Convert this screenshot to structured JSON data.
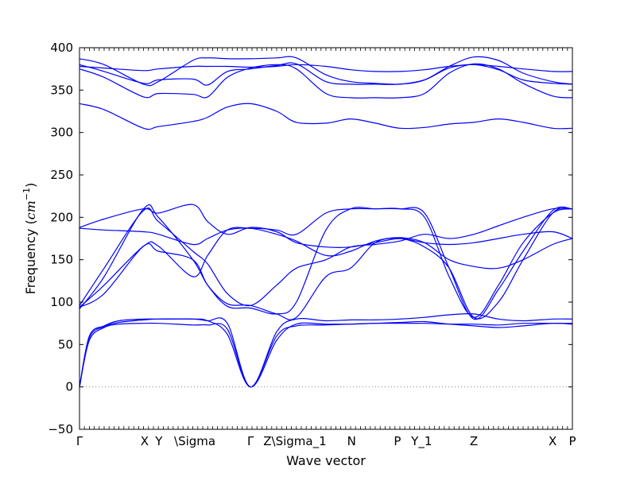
{
  "chart_data": {
    "type": "line",
    "title": "",
    "xlabel": "Wave vector",
    "ylabel": "Frequency ($cm^{-1}$)",
    "ylabel_parts": {
      "text": "Frequency (",
      "math": "cm",
      "sup": "−1",
      "close": ")"
    },
    "ylim": [
      -50,
      400
    ],
    "yticks": [
      -50,
      0,
      50,
      100,
      150,
      200,
      250,
      300,
      350,
      400
    ],
    "xlim": [
      0,
      1
    ],
    "grid": false,
    "legend": "none",
    "line_color": "#0000ff",
    "zero_line": {
      "y": 0,
      "style": "dotted",
      "color": "#888888"
    },
    "xticks": [
      {
        "label": "Γ",
        "x": 0.0
      },
      {
        "label": "X",
        "x": 0.132
      },
      {
        "label": "Y",
        "x": 0.161
      },
      {
        "label": "\\Sigma",
        "x": 0.234
      },
      {
        "label": "Γ",
        "x": 0.347
      },
      {
        "label": "Z\\Sigma_1",
        "x": 0.437
      },
      {
        "label": "N",
        "x": 0.552
      },
      {
        "label": "P",
        "x": 0.645
      },
      {
        "label": "Y_1",
        "x": 0.694
      },
      {
        "label": "Z",
        "x": 0.8
      },
      {
        "label": "X",
        "x": 0.96
      },
      {
        "label": "P",
        "x": 1.0
      }
    ],
    "minor_xtick_step": 0.01,
    "series": [
      {
        "x": [
          0,
          0.05,
          0.13,
          0.16,
          0.23,
          0.26,
          0.3,
          0.347,
          0.4,
          0.44,
          0.5,
          0.55,
          0.6,
          0.65,
          0.7,
          0.75,
          0.8,
          0.85,
          0.9,
          0.96,
          1.0
        ],
        "y": [
          387,
          380,
          357,
          360,
          385,
          388,
          387,
          387,
          388,
          388,
          368,
          360,
          358,
          357,
          362,
          378,
          389,
          385,
          370,
          360,
          357
        ]
      },
      {
        "x": [
          0,
          0.05,
          0.13,
          0.16,
          0.23,
          0.26,
          0.3,
          0.347,
          0.4,
          0.44,
          0.5,
          0.55,
          0.6,
          0.65,
          0.7,
          0.75,
          0.8,
          0.85,
          0.9,
          0.96,
          1.0
        ],
        "y": [
          375,
          365,
          342,
          346,
          345,
          342,
          365,
          376,
          380,
          375,
          346,
          341,
          341,
          341,
          346,
          370,
          381,
          375,
          358,
          343,
          341
        ]
      },
      {
        "x": [
          0,
          0.05,
          0.13,
          0.16,
          0.23,
          0.26,
          0.3,
          0.347,
          0.4,
          0.44,
          0.5,
          0.55,
          0.6,
          0.65,
          0.7,
          0.75,
          0.8,
          0.85,
          0.9,
          0.96,
          1.0
        ],
        "y": [
          378,
          376,
          373,
          375,
          378,
          378,
          378,
          377,
          378,
          380,
          378,
          374,
          372,
          372,
          374,
          378,
          380,
          378,
          375,
          372,
          372
        ]
      },
      {
        "x": [
          0,
          0.05,
          0.13,
          0.16,
          0.23,
          0.26,
          0.3,
          0.347,
          0.4,
          0.44,
          0.5,
          0.55,
          0.6,
          0.65,
          0.7,
          0.75,
          0.8,
          0.85,
          0.9,
          0.96,
          1.0
        ],
        "y": [
          380,
          372,
          358,
          362,
          363,
          356,
          372,
          375,
          379,
          381,
          360,
          357,
          357,
          357,
          362,
          376,
          380,
          374,
          362,
          358,
          357
        ]
      },
      {
        "x": [
          0,
          0.05,
          0.13,
          0.16,
          0.23,
          0.26,
          0.3,
          0.347,
          0.4,
          0.44,
          0.5,
          0.55,
          0.6,
          0.65,
          0.7,
          0.75,
          0.8,
          0.85,
          0.9,
          0.96,
          1.0
        ],
        "y": [
          334,
          327,
          305,
          307,
          313,
          318,
          330,
          334,
          325,
          312,
          311,
          316,
          311,
          305,
          306,
          310,
          312,
          316,
          312,
          305,
          305
        ]
      },
      {
        "x": [
          0,
          0.05,
          0.13,
          0.16,
          0.23,
          0.26,
          0.3,
          0.347,
          0.4,
          0.44,
          0.5,
          0.55,
          0.6,
          0.65,
          0.7,
          0.75,
          0.8,
          0.85,
          0.9,
          0.96,
          1.0
        ],
        "y": [
          188,
          198,
          210,
          205,
          215,
          195,
          180,
          188,
          183,
          170,
          165,
          165,
          170,
          175,
          170,
          168,
          170,
          175,
          180,
          183,
          175
        ]
      },
      {
        "x": [
          0,
          0.05,
          0.13,
          0.16,
          0.23,
          0.26,
          0.3,
          0.347,
          0.4,
          0.44,
          0.5,
          0.55,
          0.6,
          0.65,
          0.7,
          0.75,
          0.8,
          0.85,
          0.9,
          0.96,
          1.0
        ],
        "y": [
          187,
          185,
          183,
          180,
          168,
          175,
          185,
          187,
          180,
          172,
          155,
          160,
          172,
          176,
          170,
          150,
          142,
          140,
          150,
          168,
          175
        ]
      },
      {
        "x": [
          0,
          0.05,
          0.13,
          0.16,
          0.23,
          0.26,
          0.3,
          0.347,
          0.4,
          0.44,
          0.5,
          0.55,
          0.6,
          0.65,
          0.7,
          0.75,
          0.8,
          0.85,
          0.9,
          0.96,
          1.0
        ],
        "y": [
          96,
          140,
          208,
          195,
          160,
          145,
          110,
          96,
          120,
          140,
          150,
          165,
          168,
          172,
          180,
          175,
          180,
          190,
          200,
          210,
          210
        ]
      },
      {
        "x": [
          0,
          0.05,
          0.13,
          0.16,
          0.23,
          0.26,
          0.3,
          0.347,
          0.4,
          0.44,
          0.5,
          0.55,
          0.6,
          0.65,
          0.7,
          0.75,
          0.8,
          0.85,
          0.9,
          0.96,
          1.0
        ],
        "y": [
          92,
          130,
          210,
          200,
          150,
          120,
          95,
          93,
          86,
          100,
          185,
          210,
          210,
          210,
          200,
          130,
          82,
          120,
          170,
          205,
          210
        ]
      },
      {
        "x": [
          0,
          0.05,
          0.13,
          0.16,
          0.23,
          0.26,
          0.3,
          0.347,
          0.4,
          0.44,
          0.5,
          0.55,
          0.6,
          0.65,
          0.7,
          0.75,
          0.8,
          0.85,
          0.9,
          0.96,
          1.0
        ],
        "y": [
          94,
          120,
          166,
          166,
          130,
          155,
          185,
          187,
          185,
          180,
          205,
          210,
          210,
          210,
          205,
          140,
          80,
          115,
          160,
          208,
          210
        ]
      },
      {
        "x": [
          0,
          0.05,
          0.13,
          0.16,
          0.23,
          0.26,
          0.3,
          0.347,
          0.4,
          0.44,
          0.5,
          0.55,
          0.6,
          0.65,
          0.7,
          0.75,
          0.8,
          0.85,
          0.9,
          0.96,
          1.0
        ],
        "y": [
          94,
          110,
          166,
          160,
          150,
          120,
          98,
          96,
          86,
          82,
          130,
          140,
          170,
          175,
          165,
          140,
          82,
          100,
          150,
          205,
          210
        ]
      },
      {
        "x": [
          0,
          0.02,
          0.05,
          0.08,
          0.13,
          0.16,
          0.23,
          0.26,
          0.3,
          0.347,
          0.4,
          0.44,
          0.5,
          0.55,
          0.6,
          0.65,
          0.7,
          0.75,
          0.8,
          0.85,
          0.9,
          0.96,
          1.0
        ],
        "y": [
          0,
          55,
          70,
          74,
          75,
          75,
          73,
          73,
          68,
          0,
          55,
          74,
          74,
          74,
          75,
          76,
          77,
          74,
          72,
          70,
          72,
          75,
          74
        ]
      },
      {
        "x": [
          0,
          0.02,
          0.05,
          0.08,
          0.13,
          0.16,
          0.23,
          0.26,
          0.3,
          0.347,
          0.4,
          0.44,
          0.5,
          0.55,
          0.6,
          0.65,
          0.7,
          0.75,
          0.8,
          0.85,
          0.9,
          0.96,
          1.0
        ],
        "y": [
          0,
          60,
          72,
          78,
          80,
          80,
          80,
          78,
          62,
          0,
          60,
          72,
          73,
          74,
          75,
          75,
          75,
          74,
          74,
          73,
          75,
          75,
          75
        ]
      },
      {
        "x": [
          0,
          0.02,
          0.05,
          0.08,
          0.13,
          0.16,
          0.23,
          0.26,
          0.3,
          0.347,
          0.4,
          0.44,
          0.5,
          0.55,
          0.6,
          0.65,
          0.7,
          0.75,
          0.8,
          0.85,
          0.9,
          0.96,
          1.0
        ],
        "y": [
          0,
          58,
          71,
          76,
          79,
          80,
          80,
          78,
          75,
          0,
          65,
          80,
          78,
          79,
          79,
          80,
          82,
          85,
          86,
          80,
          78,
          80,
          80
        ]
      }
    ]
  }
}
